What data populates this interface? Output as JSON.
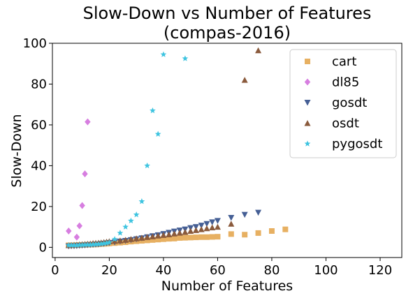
{
  "chart_data": {
    "type": "scatter",
    "title": [
      "Slow-Down vs Number of Features",
      "(compas-2016)"
    ],
    "xlabel": "Number of Features",
    "ylabel": "Slow-Down",
    "xlim": [
      -1,
      128
    ],
    "ylim": [
      -5,
      100
    ],
    "xticks": [
      0,
      20,
      40,
      60,
      80,
      100,
      120
    ],
    "yticks": [
      0,
      20,
      40,
      60,
      80,
      100
    ],
    "grid": false,
    "legend_position": "top-right",
    "series": [
      {
        "name": "cart",
        "marker": "square",
        "color": "#e7b062",
        "points": [
          [
            5,
            1
          ],
          [
            6,
            1
          ],
          [
            7,
            1
          ],
          [
            8,
            1.1
          ],
          [
            9,
            1.1
          ],
          [
            10,
            1.2
          ],
          [
            11,
            1.2
          ],
          [
            12,
            1.3
          ],
          [
            13,
            1.3
          ],
          [
            14,
            1.4
          ],
          [
            15,
            1.4
          ],
          [
            16,
            1.5
          ],
          [
            17,
            1.6
          ],
          [
            18,
            1.7
          ],
          [
            19,
            1.8
          ],
          [
            20,
            1.9
          ],
          [
            22,
            2.1
          ],
          [
            24,
            2.3
          ],
          [
            26,
            2.5
          ],
          [
            28,
            2.8
          ],
          [
            30,
            3
          ],
          [
            32,
            3.2
          ],
          [
            34,
            3.4
          ],
          [
            36,
            3.6
          ],
          [
            38,
            3.8
          ],
          [
            40,
            4
          ],
          [
            42,
            4.2
          ],
          [
            44,
            4.3
          ],
          [
            46,
            4.6
          ],
          [
            48,
            4.7
          ],
          [
            50,
            4.8
          ],
          [
            52,
            4.9
          ],
          [
            54,
            5
          ],
          [
            56,
            5
          ],
          [
            58,
            5.1
          ],
          [
            60,
            5.2
          ],
          [
            65,
            6.5
          ],
          [
            70,
            6.2
          ],
          [
            75,
            7
          ],
          [
            80,
            8
          ],
          [
            85,
            8.8
          ]
        ]
      },
      {
        "name": "dl85",
        "marker": "diamond",
        "color": "#d77ee0",
        "points": [
          [
            5,
            8
          ],
          [
            8,
            5
          ],
          [
            9,
            10.5
          ],
          [
            10,
            20.5
          ],
          [
            11,
            36
          ],
          [
            12,
            61.5
          ]
        ]
      },
      {
        "name": "gosdt",
        "marker": "triangle-down",
        "color": "#455f95",
        "points": [
          [
            5,
            0.5
          ],
          [
            6,
            0.6
          ],
          [
            7,
            0.6
          ],
          [
            8,
            0.7
          ],
          [
            9,
            0.8
          ],
          [
            10,
            0.9
          ],
          [
            11,
            1
          ],
          [
            12,
            1.1
          ],
          [
            13,
            1.2
          ],
          [
            14,
            1.3
          ],
          [
            15,
            1.4
          ],
          [
            16,
            1.5
          ],
          [
            17,
            1.7
          ],
          [
            18,
            1.8
          ],
          [
            19,
            2
          ],
          [
            20,
            2.2
          ],
          [
            22,
            2.5
          ],
          [
            24,
            2.9
          ],
          [
            26,
            3.2
          ],
          [
            28,
            3.6
          ],
          [
            30,
            4
          ],
          [
            32,
            4.5
          ],
          [
            34,
            5
          ],
          [
            36,
            5.5
          ],
          [
            38,
            6
          ],
          [
            40,
            6.6
          ],
          [
            42,
            7.2
          ],
          [
            44,
            7.8
          ],
          [
            46,
            8.3
          ],
          [
            48,
            8.8
          ],
          [
            50,
            9.5
          ],
          [
            52,
            10
          ],
          [
            54,
            10.7
          ],
          [
            56,
            11.5
          ],
          [
            58,
            12.3
          ],
          [
            60,
            13
          ],
          [
            65,
            14.5
          ],
          [
            70,
            16
          ],
          [
            75,
            17
          ]
        ]
      },
      {
        "name": "osdt",
        "marker": "triangle-up",
        "color": "#8a5a3c",
        "points": [
          [
            5,
            1
          ],
          [
            6,
            1.1
          ],
          [
            7,
            1.2
          ],
          [
            8,
            1.3
          ],
          [
            9,
            1.4
          ],
          [
            10,
            1.5
          ],
          [
            11,
            1.6
          ],
          [
            12,
            1.7
          ],
          [
            13,
            1.8
          ],
          [
            14,
            2
          ],
          [
            15,
            2.1
          ],
          [
            16,
            2.2
          ],
          [
            17,
            2.3
          ],
          [
            18,
            2.5
          ],
          [
            19,
            2.7
          ],
          [
            20,
            2.9
          ],
          [
            22,
            3.1
          ],
          [
            24,
            3.3
          ],
          [
            26,
            3.6
          ],
          [
            28,
            4
          ],
          [
            30,
            4.3
          ],
          [
            32,
            4.6
          ],
          [
            34,
            5
          ],
          [
            36,
            5.3
          ],
          [
            38,
            5.7
          ],
          [
            40,
            6
          ],
          [
            42,
            6.3
          ],
          [
            44,
            6.7
          ],
          [
            46,
            7.1
          ],
          [
            48,
            7.5
          ],
          [
            50,
            8
          ],
          [
            52,
            8.4
          ],
          [
            54,
            8.8
          ],
          [
            56,
            9.3
          ],
          [
            58,
            9.7
          ],
          [
            60,
            10
          ],
          [
            65,
            11.5
          ],
          [
            70,
            82
          ],
          [
            75,
            96.5
          ]
        ]
      },
      {
        "name": "pygosdt",
        "marker": "star",
        "color": "#3ec4e0",
        "points": [
          [
            5,
            1
          ],
          [
            6,
            1
          ],
          [
            7,
            1
          ],
          [
            8,
            1
          ],
          [
            9,
            1.1
          ],
          [
            10,
            1.1
          ],
          [
            11,
            1.2
          ],
          [
            12,
            1.3
          ],
          [
            13,
            1.3
          ],
          [
            14,
            1.4
          ],
          [
            15,
            1.5
          ],
          [
            16,
            1.6
          ],
          [
            17,
            1.7
          ],
          [
            18,
            1.9
          ],
          [
            19,
            2.1
          ],
          [
            20,
            2.4
          ],
          [
            22,
            4
          ],
          [
            24,
            7
          ],
          [
            26,
            10
          ],
          [
            28,
            13
          ],
          [
            30,
            16
          ],
          [
            32,
            22.5
          ],
          [
            34,
            40
          ],
          [
            36,
            67
          ],
          [
            38,
            55.5
          ],
          [
            40,
            94.5
          ],
          [
            48,
            92.5
          ]
        ]
      }
    ]
  }
}
